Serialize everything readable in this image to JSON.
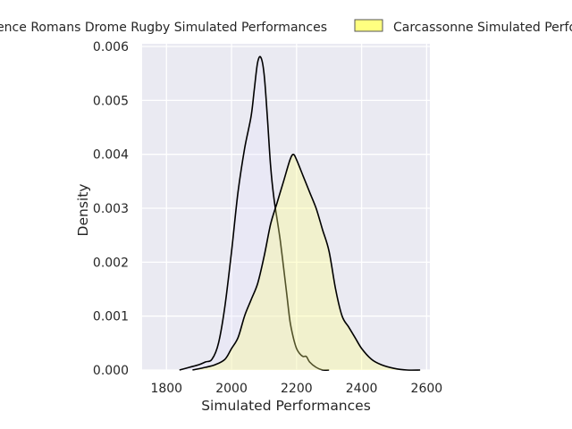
{
  "chart_data": {
    "type": "area",
    "title": "",
    "xlabel": "Simulated Performances",
    "ylabel": "Density",
    "xlim": [
      1725,
      2610
    ],
    "ylim": [
      0,
      0.00605
    ],
    "xticks": [
      1800,
      2000,
      2200,
      2400,
      2600
    ],
    "yticks": [
      0.0,
      0.001,
      0.002,
      0.003,
      0.004,
      0.005,
      0.006
    ],
    "ytick_labels": [
      "0.000",
      "0.001",
      "0.002",
      "0.003",
      "0.004",
      "0.005",
      "0.006"
    ],
    "grid": true,
    "legend_position": "top",
    "series": [
      {
        "name": "Valence Romans Drome Rugby Simulated Performances",
        "color": "#e5e3ff",
        "x": [
          1840,
          1870,
          1900,
          1920,
          1940,
          1960,
          1980,
          2000,
          2020,
          2040,
          2060,
          2070,
          2080,
          2090,
          2100,
          2110,
          2120,
          2130,
          2140,
          2150,
          2160,
          2170,
          2180,
          2190,
          2200,
          2210,
          2220,
          2230,
          2240,
          2260,
          2280,
          2300
        ],
        "values": [
          0.0,
          5e-05,
          0.0001,
          0.00015,
          0.0002,
          0.0005,
          0.0012,
          0.0022,
          0.0033,
          0.0041,
          0.0047,
          0.0052,
          0.0057,
          0.0058,
          0.0055,
          0.0047,
          0.0038,
          0.0032,
          0.0028,
          0.0024,
          0.0019,
          0.0014,
          0.0009,
          0.0006,
          0.0004,
          0.0003,
          0.00025,
          0.00025,
          0.00015,
          5e-05,
          0.0,
          0.0
        ]
      },
      {
        "name": "Carcassonne Simulated Performances",
        "color": "#ffff80",
        "x": [
          1880,
          1920,
          1950,
          1980,
          2000,
          2020,
          2040,
          2060,
          2080,
          2100,
          2120,
          2140,
          2160,
          2180,
          2190,
          2200,
          2220,
          2240,
          2260,
          2280,
          2300,
          2320,
          2340,
          2360,
          2380,
          2400,
          2430,
          2460,
          2500,
          2540,
          2580
        ],
        "values": [
          0.0,
          5e-05,
          0.0001,
          0.0002,
          0.0004,
          0.0006,
          0.001,
          0.0013,
          0.0016,
          0.0021,
          0.0027,
          0.0031,
          0.0035,
          0.0039,
          0.004,
          0.0039,
          0.0036,
          0.0033,
          0.003,
          0.0026,
          0.0022,
          0.0015,
          0.001,
          0.0008,
          0.0006,
          0.0004,
          0.0002,
          0.0001,
          3e-05,
          0.0,
          0.0
        ]
      }
    ]
  }
}
